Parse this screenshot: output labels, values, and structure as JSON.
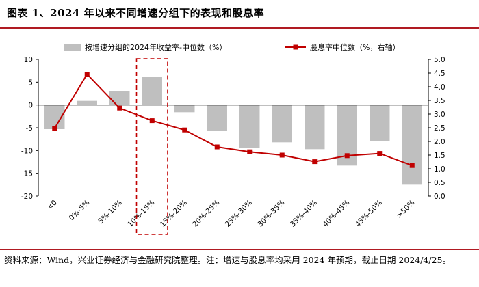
{
  "title": "图表 1、2024 年以来不同增速分组下的表现和股息率",
  "source_text": "资料来源：Wind，兴业证券经济与金融研究院整理。注：增速与股息率均采用 2024 年预期，截止日期 2024/4/25。",
  "colors": {
    "bar": "#bfbfbf",
    "line": "#c00000",
    "rule": "#b01a22",
    "highlight": "#c00000"
  },
  "chart_data": {
    "type": "bar",
    "categories": [
      "<0",
      "0%-5%",
      "5%-10%",
      "10%-15%",
      "15%-20%",
      "20%-25%",
      "25%-30%",
      "30%-35%",
      "35%-40%",
      "40%-45%",
      "45%-50%",
      ">50%"
    ],
    "series": [
      {
        "name": "按增速分组的2024年收益率-中位数（%）",
        "type": "bar",
        "axis": "left",
        "values": [
          -5.3,
          0.9,
          3.1,
          6.2,
          -1.6,
          -5.7,
          -9.4,
          -8.2,
          -9.7,
          -13.3,
          -7.9,
          -17.5
        ]
      },
      {
        "name": "股息率中位数（%，右轴）",
        "type": "line",
        "axis": "right",
        "values": [
          2.48,
          4.46,
          3.22,
          2.76,
          2.42,
          1.8,
          1.62,
          1.5,
          1.26,
          1.48,
          1.56,
          1.12
        ]
      }
    ],
    "y_left": {
      "min": -20,
      "max": 10,
      "ticks": [
        -20,
        -15,
        -10,
        -5,
        0,
        5,
        10
      ]
    },
    "y_right": {
      "min": 0,
      "max": 5,
      "ticks": [
        "0.0",
        "0.5",
        "1.0",
        "1.5",
        "2.0",
        "2.5",
        "3.0",
        "3.5",
        "4.0",
        "4.5",
        "5.0"
      ]
    },
    "highlight_category": "10%-15%",
    "legend_position": "top",
    "grid": false
  }
}
